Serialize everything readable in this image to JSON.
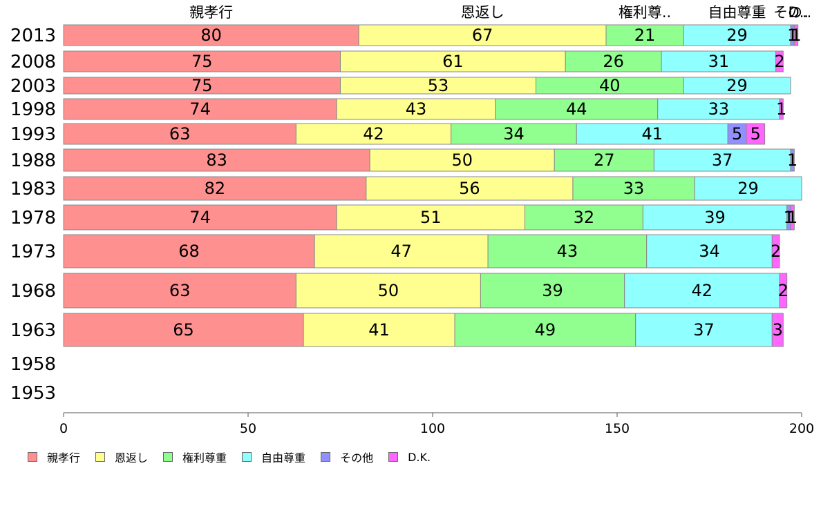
{
  "chart_data": {
    "type": "bar",
    "orientation": "horizontal",
    "stacked": true,
    "categories": [
      "2013",
      "2008",
      "2003",
      "1998",
      "1993",
      "1988",
      "1983",
      "1978",
      "1973",
      "1968",
      "1963",
      "1958",
      "1953"
    ],
    "series": [
      {
        "name": "親孝行",
        "color": "#ff9090",
        "values": [
          80,
          75,
          75,
          74,
          63,
          83,
          82,
          74,
          68,
          63,
          65,
          null,
          null
        ]
      },
      {
        "name": "恩返し",
        "color": "#ffff90",
        "values": [
          67,
          61,
          53,
          43,
          42,
          50,
          56,
          51,
          47,
          50,
          41,
          null,
          null
        ]
      },
      {
        "name": "権利尊重",
        "color": "#90ff90",
        "values": [
          21,
          26,
          40,
          44,
          34,
          27,
          33,
          32,
          43,
          39,
          49,
          null,
          null
        ]
      },
      {
        "name": "自由尊重",
        "color": "#90ffff",
        "values": [
          29,
          31,
          29,
          33,
          41,
          37,
          29,
          39,
          34,
          42,
          37,
          null,
          null
        ]
      },
      {
        "name": "その他",
        "color": "#9090ff",
        "values": [
          1,
          0,
          0,
          0,
          5,
          1,
          0,
          1,
          0,
          0,
          0,
          null,
          null
        ]
      },
      {
        "name": "D.K.",
        "color": "#ff66ff",
        "values": [
          1,
          2,
          0,
          1,
          5,
          0,
          0,
          1,
          2,
          2,
          3,
          null,
          null
        ]
      }
    ],
    "top_labels": [
      "親孝行",
      "恩返し",
      "権利尊..",
      "自由尊重",
      "その..",
      "D.."
    ],
    "xlim": [
      0,
      200
    ],
    "xticks": [
      0,
      50,
      100,
      150,
      200
    ],
    "grid": false,
    "legend_position": "bottom"
  }
}
